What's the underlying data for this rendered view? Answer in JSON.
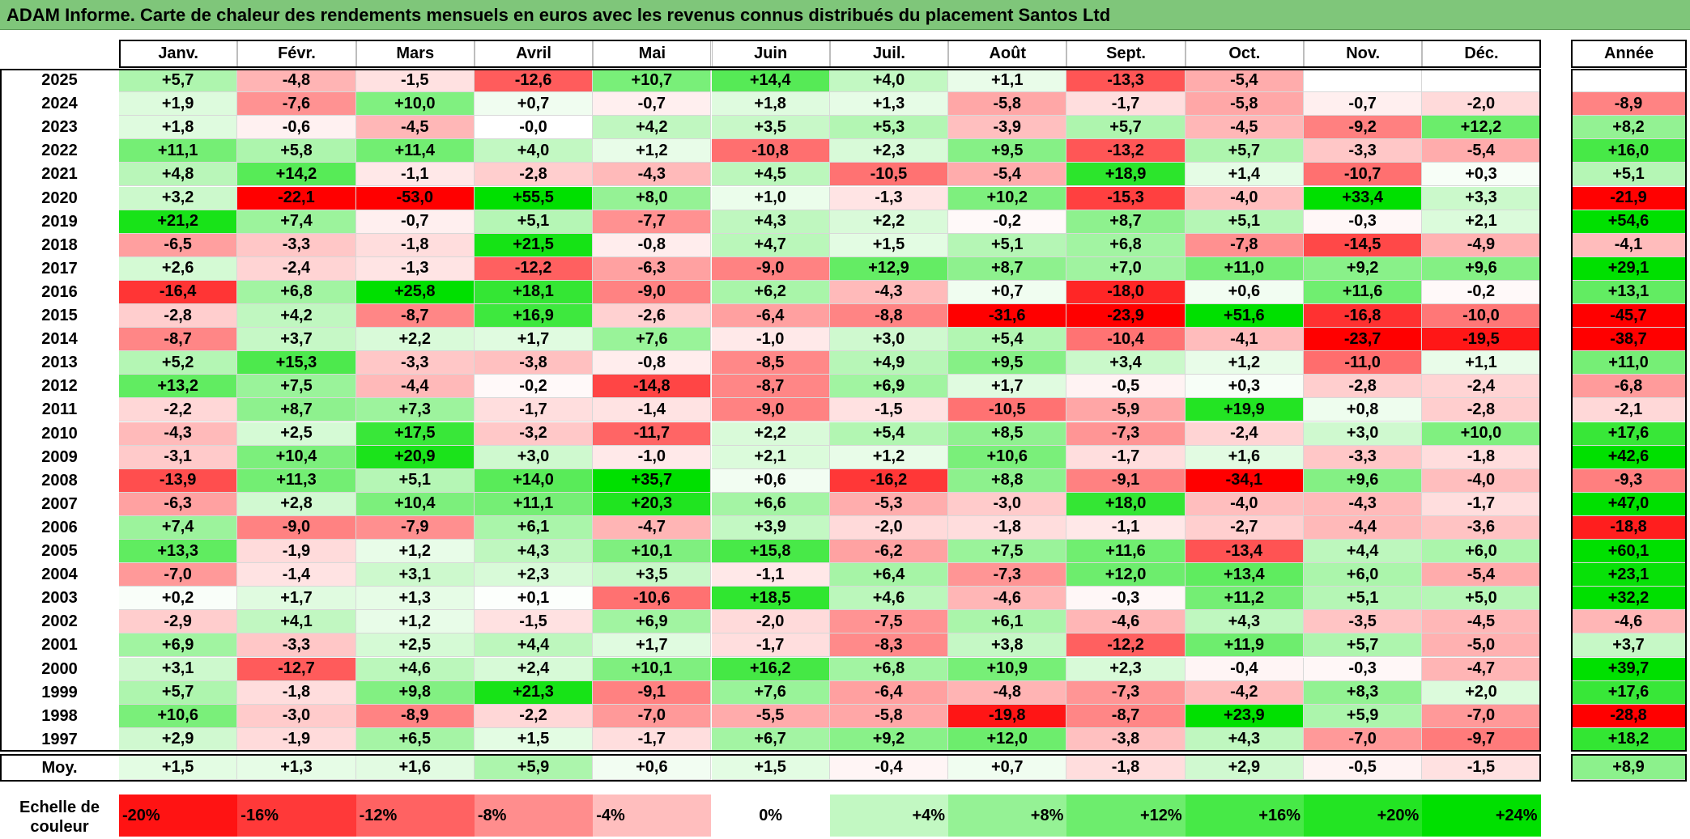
{
  "title": "ADAM Informe. Carte de chaleur des rendements mensuels en euros avec les revenus connus distribués du placement Santos Ltd",
  "chart_data": {
    "type": "heatmap",
    "title": "ADAM Informe. Carte de chaleur des rendements mensuels en euros avec les revenus connus distribués du placement Santos Ltd",
    "columns": [
      "Janv.",
      "Févr.",
      "Mars",
      "Avril",
      "Mai",
      "Juin",
      "Juil.",
      "Août",
      "Sept.",
      "Oct.",
      "Nov.",
      "Déc."
    ],
    "year_column_label": "Année",
    "rows": [
      {
        "year": "2025",
        "values": [
          "+5,7",
          "-4,8",
          "-1,5",
          "-12,6",
          "+10,7",
          "+14,4",
          "+4,0",
          "+1,1",
          "-13,3",
          "-5,4",
          "",
          ""
        ],
        "annual": ""
      },
      {
        "year": "2024",
        "values": [
          "+1,9",
          "-7,6",
          "+10,0",
          "+0,7",
          "-0,7",
          "+1,8",
          "+1,3",
          "-5,8",
          "-1,7",
          "-5,8",
          "-0,7",
          "-2,0"
        ],
        "annual": "-8,9"
      },
      {
        "year": "2023",
        "values": [
          "+1,8",
          "-0,6",
          "-4,5",
          "-0,0",
          "+4,2",
          "+3,5",
          "+5,3",
          "-3,9",
          "+5,7",
          "-4,5",
          "-9,2",
          "+12,2"
        ],
        "annual": "+8,2"
      },
      {
        "year": "2022",
        "values": [
          "+11,1",
          "+5,8",
          "+11,4",
          "+4,0",
          "+1,2",
          "-10,8",
          "+2,3",
          "+9,5",
          "-13,2",
          "+5,7",
          "-3,3",
          "-5,4"
        ],
        "annual": "+16,0"
      },
      {
        "year": "2021",
        "values": [
          "+4,8",
          "+14,2",
          "-1,1",
          "-2,8",
          "-4,3",
          "+4,5",
          "-10,5",
          "-5,4",
          "+18,9",
          "+1,4",
          "-10,7",
          "+0,3"
        ],
        "annual": "+5,1"
      },
      {
        "year": "2020",
        "values": [
          "+3,2",
          "-22,1",
          "-53,0",
          "+55,5",
          "+8,0",
          "+1,0",
          "-1,3",
          "+10,2",
          "-15,3",
          "-4,0",
          "+33,4",
          "+3,3"
        ],
        "annual": "-21,9"
      },
      {
        "year": "2019",
        "values": [
          "+21,2",
          "+7,4",
          "-0,7",
          "+5,1",
          "-7,7",
          "+4,3",
          "+2,2",
          "-0,2",
          "+8,7",
          "+5,1",
          "-0,3",
          "+2,1"
        ],
        "annual": "+54,6"
      },
      {
        "year": "2018",
        "values": [
          "-6,5",
          "-3,3",
          "-1,8",
          "+21,5",
          "-0,8",
          "+4,7",
          "+1,5",
          "+5,1",
          "+6,8",
          "-7,8",
          "-14,5",
          "-4,9"
        ],
        "annual": "-4,1"
      },
      {
        "year": "2017",
        "values": [
          "+2,6",
          "-2,4",
          "-1,3",
          "-12,2",
          "-6,3",
          "-9,0",
          "+12,9",
          "+8,7",
          "+7,0",
          "+11,0",
          "+9,2",
          "+9,6"
        ],
        "annual": "+29,1"
      },
      {
        "year": "2016",
        "values": [
          "-16,4",
          "+6,8",
          "+25,8",
          "+18,1",
          "-9,0",
          "+6,2",
          "-4,3",
          "+0,7",
          "-18,0",
          "+0,6",
          "+11,6",
          "-0,2"
        ],
        "annual": "+13,1"
      },
      {
        "year": "2015",
        "values": [
          "-2,8",
          "+4,2",
          "-8,7",
          "+16,9",
          "-2,6",
          "-6,4",
          "-8,8",
          "-31,6",
          "-23,9",
          "+51,6",
          "-16,8",
          "-10,0"
        ],
        "annual": "-45,7"
      },
      {
        "year": "2014",
        "values": [
          "-8,7",
          "+3,7",
          "+2,2",
          "+1,7",
          "+7,6",
          "-1,0",
          "+3,0",
          "+5,4",
          "-10,4",
          "-4,1",
          "-23,7",
          "-19,5"
        ],
        "annual": "-38,7"
      },
      {
        "year": "2013",
        "values": [
          "+5,2",
          "+15,3",
          "-3,3",
          "-3,8",
          "-0,8",
          "-8,5",
          "+4,9",
          "+9,5",
          "+3,4",
          "+1,2",
          "-11,0",
          "+1,1"
        ],
        "annual": "+11,0"
      },
      {
        "year": "2012",
        "values": [
          "+13,2",
          "+7,5",
          "-4,4",
          "-0,2",
          "-14,8",
          "-8,7",
          "+6,9",
          "+1,7",
          "-0,5",
          "+0,3",
          "-2,8",
          "-2,4"
        ],
        "annual": "-6,8"
      },
      {
        "year": "2011",
        "values": [
          "-2,2",
          "+8,7",
          "+7,3",
          "-1,7",
          "-1,4",
          "-9,0",
          "-1,5",
          "-10,5",
          "-5,9",
          "+19,9",
          "+0,8",
          "-2,8"
        ],
        "annual": "-2,1"
      },
      {
        "year": "2010",
        "values": [
          "-4,3",
          "+2,5",
          "+17,5",
          "-3,2",
          "-11,7",
          "+2,2",
          "+5,4",
          "+8,5",
          "-7,3",
          "-2,4",
          "+3,0",
          "+10,0"
        ],
        "annual": "+17,6"
      },
      {
        "year": "2009",
        "values": [
          "-3,1",
          "+10,4",
          "+20,9",
          "+3,0",
          "-1,0",
          "+2,1",
          "+1,2",
          "+10,6",
          "-1,7",
          "+1,6",
          "-3,3",
          "-1,8"
        ],
        "annual": "+42,6"
      },
      {
        "year": "2008",
        "values": [
          "-13,9",
          "+11,3",
          "+5,1",
          "+14,0",
          "+35,7",
          "+0,6",
          "-16,2",
          "+8,8",
          "-9,1",
          "-34,1",
          "+9,6",
          "-4,0"
        ],
        "annual": "-9,3"
      },
      {
        "year": "2007",
        "values": [
          "-6,3",
          "+2,8",
          "+10,4",
          "+11,1",
          "+20,3",
          "+6,6",
          "-5,3",
          "-3,0",
          "+18,0",
          "-4,0",
          "-4,3",
          "-1,7"
        ],
        "annual": "+47,0"
      },
      {
        "year": "2006",
        "values": [
          "+7,4",
          "-9,0",
          "-7,9",
          "+6,1",
          "-4,7",
          "+3,9",
          "-2,0",
          "-1,8",
          "-1,1",
          "-2,7",
          "-4,4",
          "-3,6"
        ],
        "annual": "-18,8"
      },
      {
        "year": "2005",
        "values": [
          "+13,3",
          "-1,9",
          "+1,2",
          "+4,3",
          "+10,1",
          "+15,8",
          "-6,2",
          "+7,5",
          "+11,6",
          "-13,4",
          "+4,4",
          "+6,0"
        ],
        "annual": "+60,1"
      },
      {
        "year": "2004",
        "values": [
          "-7,0",
          "-1,4",
          "+3,1",
          "+2,3",
          "+3,5",
          "-1,1",
          "+6,4",
          "-7,3",
          "+12,0",
          "+13,4",
          "+6,0",
          "-5,4"
        ],
        "annual": "+23,1"
      },
      {
        "year": "2003",
        "values": [
          "+0,2",
          "+1,7",
          "+1,3",
          "+0,1",
          "-10,6",
          "+18,5",
          "+4,6",
          "-4,6",
          "-0,3",
          "+11,2",
          "+5,1",
          "+5,0"
        ],
        "annual": "+32,2"
      },
      {
        "year": "2002",
        "values": [
          "-2,9",
          "+4,1",
          "+1,2",
          "-1,5",
          "+6,9",
          "-2,0",
          "-7,5",
          "+6,1",
          "-4,6",
          "+4,3",
          "-3,5",
          "-4,5"
        ],
        "annual": "-4,6"
      },
      {
        "year": "2001",
        "values": [
          "+6,9",
          "-3,3",
          "+2,5",
          "+4,4",
          "+1,7",
          "-1,7",
          "-8,3",
          "+3,8",
          "-12,2",
          "+11,9",
          "+5,7",
          "-5,0"
        ],
        "annual": "+3,7"
      },
      {
        "year": "2000",
        "values": [
          "+3,1",
          "-12,7",
          "+4,6",
          "+2,4",
          "+10,1",
          "+16,2",
          "+6,8",
          "+10,9",
          "+2,3",
          "-0,4",
          "-0,3",
          "-4,7"
        ],
        "annual": "+39,7"
      },
      {
        "year": "1999",
        "values": [
          "+5,7",
          "-1,8",
          "+9,8",
          "+21,3",
          "-9,1",
          "+7,6",
          "-6,4",
          "-4,8",
          "-7,3",
          "-4,2",
          "+8,3",
          "+2,0"
        ],
        "annual": "+17,6"
      },
      {
        "year": "1998",
        "values": [
          "+10,6",
          "-3,0",
          "-8,9",
          "-2,2",
          "-7,0",
          "-5,5",
          "-5,8",
          "-19,8",
          "-8,7",
          "+23,9",
          "+5,9",
          "-7,0"
        ],
        "annual": "-28,8"
      },
      {
        "year": "1997",
        "values": [
          "+2,9",
          "-1,9",
          "+6,5",
          "+1,5",
          "-1,7",
          "+6,7",
          "+9,2",
          "+12,0",
          "-3,8",
          "+4,3",
          "-7,0",
          "-9,7"
        ],
        "annual": "+18,2"
      }
    ],
    "average": {
      "label": "Moy.",
      "values": [
        "+1,5",
        "+1,3",
        "+1,6",
        "+5,9",
        "+0,6",
        "+1,5",
        "-0,4",
        "+0,7",
        "-1,8",
        "+2,9",
        "-0,5",
        "-1,5"
      ],
      "annual": "+8,9"
    },
    "scale": {
      "label": "Echelle de couleur",
      "stops": [
        "-20%",
        "-16%",
        "-12%",
        "-8%",
        "-4%",
        "0%",
        "+4%",
        "+8%",
        "+12%",
        "+16%",
        "+20%",
        "+24%"
      ],
      "stop_values": [
        -20,
        -16,
        -12,
        -8,
        -4,
        0,
        4,
        8,
        12,
        16,
        20,
        24
      ]
    },
    "colors": {
      "negative_max": "#ff0000",
      "neutral": "#ffffff",
      "positive_max": "#00e000"
    }
  }
}
